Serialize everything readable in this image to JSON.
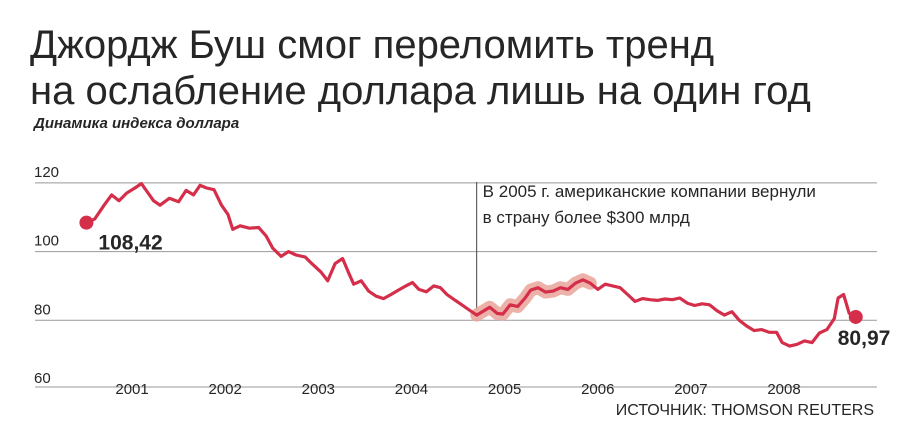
{
  "title_line1": "Джордж Буш смог переломить тренд",
  "title_line2": "на ослабление доллара лишь на один год",
  "subtitle": "Динамика индекса доллара",
  "source": "ИСТОЧНИК: THOMSON REUTERS",
  "colors": {
    "line": "#d42e4a",
    "highlight": "#e9a59a",
    "grid": "#999999",
    "text": "#262626"
  },
  "chart_data": {
    "type": "line",
    "xlabel": "",
    "ylabel": "",
    "ylim": [
      60,
      122
    ],
    "y_ticks": [
      60,
      80,
      100,
      120
    ],
    "y_tick_labels": [
      "60",
      "80",
      "100",
      "120"
    ],
    "x_ticks": [
      "2001",
      "2002",
      "2003",
      "2004",
      "2005",
      "2006",
      "2007",
      "2008"
    ],
    "xlim": [
      2000.3,
      2008.9
    ],
    "grid": true,
    "series": [
      {
        "values": [
          [
            2000.53,
            108.42
          ],
          [
            2000.62,
            109.5
          ],
          [
            2000.72,
            113.5
          ],
          [
            2000.8,
            116.5
          ],
          [
            2000.88,
            114.8
          ],
          [
            2000.96,
            117.0
          ],
          [
            2001.05,
            118.5
          ],
          [
            2001.12,
            119.8
          ],
          [
            2001.18,
            117.5
          ],
          [
            2001.25,
            114.8
          ],
          [
            2001.32,
            113.5
          ],
          [
            2001.42,
            115.5
          ],
          [
            2001.52,
            114.5
          ],
          [
            2001.6,
            117.8
          ],
          [
            2001.68,
            116.5
          ],
          [
            2001.75,
            119.3
          ],
          [
            2001.82,
            118.5
          ],
          [
            2001.9,
            118.0
          ],
          [
            2001.98,
            113.5
          ],
          [
            2002.05,
            110.8
          ],
          [
            2002.1,
            106.5
          ],
          [
            2002.18,
            107.5
          ],
          [
            2002.28,
            106.8
          ],
          [
            2002.38,
            107.0
          ],
          [
            2002.46,
            104.5
          ],
          [
            2002.53,
            101.0
          ],
          [
            2002.62,
            98.6
          ],
          [
            2002.7,
            100.0
          ],
          [
            2002.78,
            99.0
          ],
          [
            2002.88,
            98.4
          ],
          [
            2002.95,
            96.5
          ],
          [
            2003.05,
            94.0
          ],
          [
            2003.12,
            91.5
          ],
          [
            2003.2,
            96.5
          ],
          [
            2003.28,
            98.0
          ],
          [
            2003.35,
            93.5
          ],
          [
            2003.4,
            90.5
          ],
          [
            2003.48,
            91.5
          ],
          [
            2003.56,
            88.5
          ],
          [
            2003.64,
            87.0
          ],
          [
            2003.72,
            86.3
          ],
          [
            2003.8,
            87.5
          ],
          [
            2003.88,
            88.8
          ],
          [
            2003.96,
            90.0
          ],
          [
            2004.03,
            91.0
          ],
          [
            2004.1,
            89.0
          ],
          [
            2004.18,
            88.3
          ],
          [
            2004.26,
            90.0
          ],
          [
            2004.33,
            89.5
          ],
          [
            2004.4,
            87.5
          ],
          [
            2004.48,
            86.0
          ],
          [
            2004.56,
            84.5
          ],
          [
            2004.64,
            83.0
          ],
          [
            2004.72,
            81.5
          ],
          [
            2004.78,
            82.5
          ],
          [
            2004.86,
            83.8
          ],
          [
            2004.94,
            82.0
          ],
          [
            2005.0,
            81.8
          ],
          [
            2005.08,
            84.5
          ],
          [
            2005.16,
            84.0
          ],
          [
            2005.24,
            86.5
          ],
          [
            2005.3,
            88.8
          ],
          [
            2005.38,
            89.5
          ],
          [
            2005.46,
            88.2
          ],
          [
            2005.54,
            88.5
          ],
          [
            2005.62,
            89.5
          ],
          [
            2005.7,
            89.0
          ],
          [
            2005.78,
            90.8
          ],
          [
            2005.86,
            91.8
          ],
          [
            2005.94,
            90.8
          ],
          [
            2006.02,
            89.0
          ],
          [
            2006.1,
            90.5
          ],
          [
            2006.18,
            90.0
          ],
          [
            2006.26,
            89.5
          ],
          [
            2006.34,
            87.5
          ],
          [
            2006.42,
            85.5
          ],
          [
            2006.5,
            86.3
          ],
          [
            2006.58,
            86.0
          ],
          [
            2006.66,
            85.8
          ],
          [
            2006.74,
            86.2
          ],
          [
            2006.82,
            86.0
          ],
          [
            2006.9,
            86.5
          ],
          [
            2006.98,
            85.0
          ],
          [
            2007.06,
            84.3
          ],
          [
            2007.14,
            84.8
          ],
          [
            2007.22,
            84.5
          ],
          [
            2007.3,
            82.8
          ],
          [
            2007.38,
            81.5
          ],
          [
            2007.46,
            82.5
          ],
          [
            2007.54,
            80.0
          ],
          [
            2007.62,
            78.3
          ],
          [
            2007.7,
            77.0
          ],
          [
            2007.78,
            77.3
          ],
          [
            2007.86,
            76.5
          ],
          [
            2007.94,
            76.5
          ],
          [
            2008.0,
            73.5
          ],
          [
            2008.08,
            72.5
          ],
          [
            2008.16,
            73.0
          ],
          [
            2008.24,
            74.0
          ],
          [
            2008.32,
            73.5
          ],
          [
            2008.4,
            76.3
          ],
          [
            2008.48,
            77.3
          ],
          [
            2008.56,
            80.5
          ],
          [
            2008.6,
            86.5
          ],
          [
            2008.66,
            87.5
          ],
          [
            2008.72,
            82.0
          ],
          [
            2008.79,
            80.97
          ]
        ]
      }
    ],
    "highlight_range": [
      2004.65,
      2006.0
    ],
    "start_label": "108,42",
    "end_label": "80,97",
    "annotation": {
      "x": 2004.72,
      "text_line1": "В 2005 г. американские компании вернули",
      "text_line2": "в страну более $300 млрд"
    }
  }
}
